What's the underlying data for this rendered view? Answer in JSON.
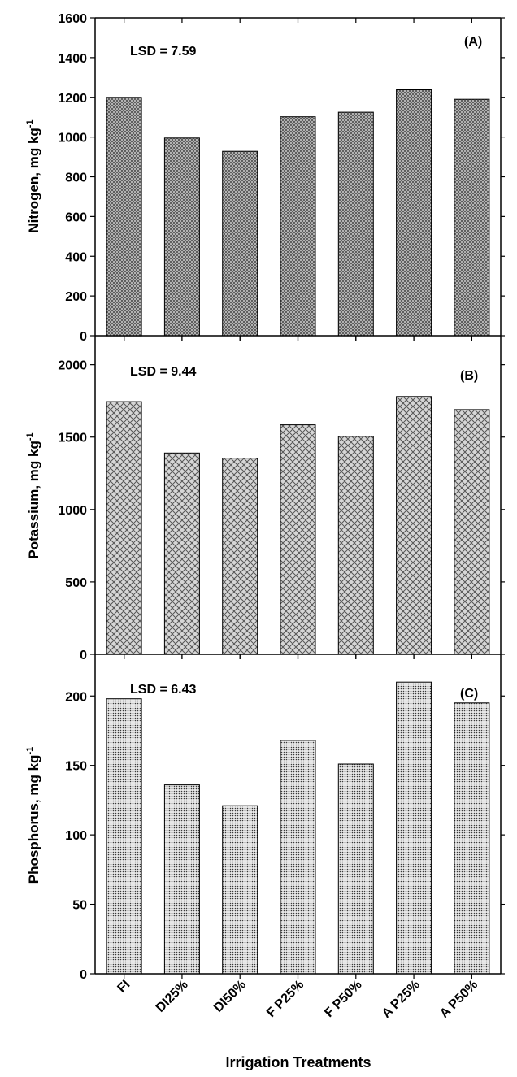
{
  "x_axis_title": "Irrigation Treatments",
  "chart_data": [
    {
      "type": "bar",
      "panel_label": "(A)",
      "annotation": "LSD = 7.59",
      "ylabel": "Nitrogen, mg kg",
      "ylabel_superscript": "-1",
      "categories": [
        "FI",
        "DI25%",
        "DI50%",
        "F P25%",
        "F P50%",
        "A P25%",
        "A P50%"
      ],
      "values": [
        1200,
        995,
        928,
        1102,
        1125,
        1238,
        1190
      ],
      "ylim": [
        0,
        1600
      ],
      "yticks": [
        "0",
        "200",
        "400",
        "600",
        "800",
        "1000",
        "1200",
        "1400",
        "1600"
      ],
      "bar_pattern": "fine-crosshatch",
      "grid": false
    },
    {
      "type": "bar",
      "panel_label": "(B)",
      "annotation": "LSD = 9.44",
      "ylabel": "Potassium, mg kg",
      "ylabel_superscript": "-1",
      "categories": [
        "FI",
        "DI25%",
        "DI50%",
        "F P25%",
        "F P50%",
        "A P25%",
        "A P50%"
      ],
      "values": [
        1745,
        1390,
        1355,
        1585,
        1505,
        1780,
        1690
      ],
      "ylim": [
        0,
        2200
      ],
      "yticks": [
        "0",
        "500",
        "1000",
        "1500",
        "2000"
      ],
      "bar_pattern": "crosshatch",
      "grid": false
    },
    {
      "type": "bar",
      "panel_label": "(C)",
      "annotation": "LSD = 6.43",
      "ylabel": "Phosphorus, mg kg",
      "ylabel_superscript": "-1",
      "categories": [
        "FI",
        "DI25%",
        "DI50%",
        "F P25%",
        "F P50%",
        "A P25%",
        "A P50%"
      ],
      "values": [
        198,
        136,
        121,
        168,
        151,
        210,
        195
      ],
      "ylim": [
        0,
        230
      ],
      "yticks": [
        "0",
        "50",
        "100",
        "150",
        "200"
      ],
      "bar_pattern": "dots",
      "grid": false
    }
  ]
}
